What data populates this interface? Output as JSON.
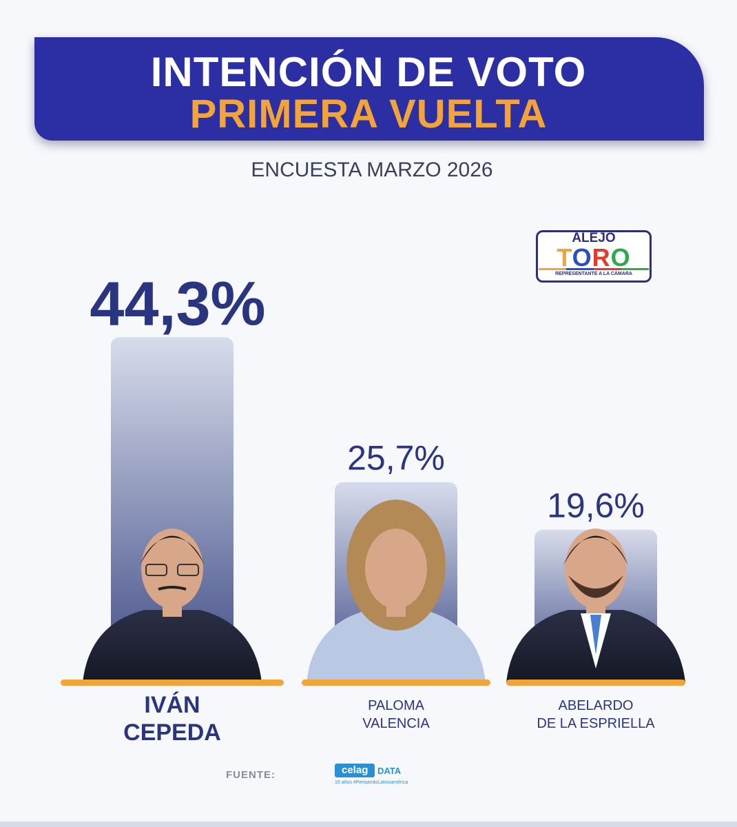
{
  "header": {
    "title_line1": "INTENCIÓN DE VOTO",
    "title_line2": "PRIMERA VUELTA",
    "subtitle": "ENCUESTA MARZO 2026"
  },
  "logo": {
    "top": "ALEJO",
    "letters": [
      "T",
      "O",
      "R",
      "O"
    ],
    "sub": "REPRESENTANTE A LA CÁMARA"
  },
  "chart_data": {
    "type": "bar",
    "categories": [
      "IVÁN CEPEDA",
      "PALOMA VALENCIA",
      "ABELARDO DE LA ESPRIELLA"
    ],
    "values": [
      44.3,
      25.7,
      19.6
    ],
    "value_labels": [
      "44,3%",
      "25,7%",
      "19,6%"
    ],
    "name_lines": [
      [
        "IVÁN",
        "CEPEDA"
      ],
      [
        "PALOMA",
        "VALENCIA"
      ],
      [
        "ABELARDO",
        "DE LA ESPRIELLA"
      ]
    ],
    "unit": "%",
    "colors": {
      "bar_top": "#d7dceb",
      "bar_bottom": "#3e4a85",
      "base": "#f2a33a",
      "text": "#2a3580"
    }
  },
  "footer": {
    "source_label": "FUENTE:",
    "source_logo": "celag",
    "source_logo_suffix": "DATA",
    "source_tagline": "10 años #PensandoLatinoamérica"
  }
}
